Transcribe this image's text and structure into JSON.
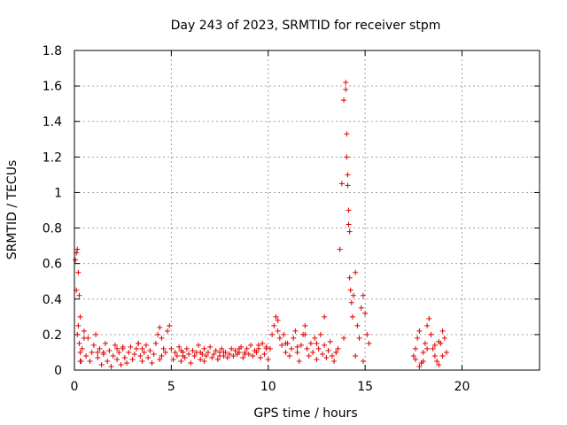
{
  "chart_data": {
    "type": "scatter",
    "title": "Day 243 of 2023, SRMTID for receiver stpm",
    "xlabel": "GPS time / hours",
    "ylabel": "SRMTID / TECUs",
    "xlim": [
      0,
      24
    ],
    "ylim": [
      0,
      1.8
    ],
    "xticks": [
      0,
      5,
      10,
      15,
      20
    ],
    "yticks": [
      0,
      0.2,
      0.4,
      0.6,
      0.8,
      1,
      1.2,
      1.4,
      1.6,
      1.8
    ],
    "xtick_labels": [
      "0",
      "5",
      "10",
      "15",
      "20"
    ],
    "ytick_labels": [
      "0",
      "0.2",
      "0.4",
      "0.6",
      "0.8",
      "1",
      "1.2",
      "1.4",
      "1.6",
      "1.8"
    ],
    "grid": true,
    "marker": "plus",
    "color": "#e00000",
    "series": [
      {
        "name": "SRMTID",
        "x": [
          0.05,
          0.1,
          0.15,
          0.2,
          0.25,
          0.3,
          0.1,
          0.2,
          0.15,
          0.25,
          0.3,
          0.35,
          0.4,
          0.5,
          0.6,
          0.7,
          0.8,
          0.9,
          1.0,
          1.1,
          1.2,
          1.3,
          1.4,
          1.5,
          1.6,
          1.7,
          1.8,
          1.9,
          2.0,
          2.1,
          2.2,
          2.3,
          2.4,
          2.5,
          2.6,
          2.7,
          2.8,
          2.9,
          3.0,
          3.1,
          3.2,
          3.3,
          3.4,
          3.5,
          3.6,
          3.7,
          3.8,
          3.9,
          4.0,
          4.1,
          4.2,
          4.3,
          4.4,
          4.5,
          4.6,
          4.7,
          4.8,
          4.9,
          5.0,
          5.1,
          5.2,
          5.3,
          5.4,
          5.5,
          5.6,
          5.7,
          5.8,
          5.9,
          6.0,
          6.1,
          6.2,
          6.3,
          6.4,
          6.5,
          6.6,
          6.7,
          6.8,
          6.9,
          7.0,
          7.1,
          7.2,
          7.3,
          7.4,
          7.5,
          7.6,
          7.7,
          7.8,
          7.9,
          8.0,
          8.1,
          8.2,
          8.3,
          8.4,
          8.5,
          8.6,
          8.7,
          8.8,
          8.9,
          9.0,
          9.1,
          9.2,
          9.3,
          9.4,
          9.5,
          9.6,
          9.7,
          9.8,
          9.9,
          10.0,
          10.1,
          10.2,
          10.3,
          10.4,
          10.5,
          10.6,
          10.7,
          10.8,
          10.9,
          11.0,
          11.1,
          11.2,
          11.3,
          11.4,
          11.5,
          11.6,
          11.7,
          11.8,
          11.9,
          12.0,
          12.1,
          12.2,
          12.3,
          12.4,
          12.5,
          12.6,
          12.7,
          12.8,
          12.9,
          13.0,
          13.1,
          13.2,
          13.3,
          13.4,
          13.5,
          13.6,
          13.7,
          13.8,
          13.9,
          14.0,
          14.0,
          14.05,
          14.05,
          14.1,
          14.1,
          14.15,
          14.15,
          14.2,
          14.2,
          14.25,
          14.3,
          14.35,
          14.4,
          14.5,
          14.6,
          14.7,
          14.8,
          14.9,
          15.0,
          15.1,
          15.2,
          0.5,
          1.5,
          2.5,
          3.5,
          4.5,
          5.5,
          6.5,
          7.5,
          8.5,
          9.5,
          10.5,
          11.5,
          12.5,
          13.5,
          14.5,
          0.3,
          1.2,
          2.2,
          3.3,
          4.4,
          5.6,
          6.7,
          7.7,
          8.8,
          9.9,
          10.9,
          11.9,
          12.9,
          13.9,
          14.9,
          17.5,
          17.6,
          17.7,
          17.8,
          17.9,
          18.0,
          18.1,
          18.2,
          18.3,
          18.4,
          18.5,
          18.6,
          18.7,
          18.8,
          18.9,
          19.0,
          19.1,
          19.2,
          17.6,
          17.8,
          18.0,
          18.2,
          18.4,
          18.6,
          18.8,
          19.0
        ],
        "y": [
          0.62,
          0.66,
          0.68,
          0.55,
          0.42,
          0.3,
          0.45,
          0.25,
          0.2,
          0.15,
          0.1,
          0.05,
          0.12,
          0.22,
          0.08,
          0.18,
          0.05,
          0.1,
          0.14,
          0.2,
          0.07,
          0.12,
          0.03,
          0.09,
          0.15,
          0.05,
          0.11,
          0.02,
          0.08,
          0.14,
          0.06,
          0.1,
          0.03,
          0.12,
          0.07,
          0.04,
          0.1,
          0.13,
          0.06,
          0.09,
          0.12,
          0.15,
          0.08,
          0.05,
          0.1,
          0.14,
          0.07,
          0.11,
          0.04,
          0.09,
          0.15,
          0.2,
          0.24,
          0.18,
          0.12,
          0.1,
          0.22,
          0.25,
          0.12,
          0.06,
          0.1,
          0.08,
          0.13,
          0.05,
          0.1,
          0.07,
          0.12,
          0.09,
          0.04,
          0.11,
          0.08,
          0.1,
          0.14,
          0.06,
          0.09,
          0.12,
          0.08,
          0.1,
          0.13,
          0.07,
          0.09,
          0.11,
          0.06,
          0.1,
          0.12,
          0.08,
          0.1,
          0.07,
          0.09,
          0.12,
          0.08,
          0.11,
          0.09,
          0.1,
          0.13,
          0.07,
          0.1,
          0.12,
          0.09,
          0.14,
          0.08,
          0.11,
          0.1,
          0.12,
          0.07,
          0.15,
          0.09,
          0.13,
          0.06,
          0.12,
          0.2,
          0.25,
          0.3,
          0.22,
          0.18,
          0.14,
          0.2,
          0.1,
          0.15,
          0.08,
          0.12,
          0.18,
          0.22,
          0.1,
          0.05,
          0.14,
          0.2,
          0.25,
          0.12,
          0.08,
          0.15,
          0.1,
          0.18,
          0.06,
          0.12,
          0.2,
          0.09,
          0.14,
          0.07,
          0.11,
          0.16,
          0.08,
          0.05,
          0.1,
          0.12,
          0.68,
          1.05,
          1.52,
          1.62,
          1.58,
          1.33,
          1.2,
          1.1,
          1.04,
          0.9,
          0.82,
          0.78,
          0.52,
          0.45,
          0.38,
          0.3,
          0.42,
          0.55,
          0.25,
          0.18,
          0.35,
          0.42,
          0.32,
          0.2,
          0.15,
          0.18,
          0.1,
          0.13,
          0.12,
          0.08,
          0.11,
          0.1,
          0.08,
          0.12,
          0.14,
          0.28,
          0.13,
          0.15,
          0.1,
          0.08,
          0.05,
          0.1,
          0.12,
          0.15,
          0.06,
          0.08,
          0.05,
          0.1,
          0.09,
          0.12,
          0.15,
          0.2,
          0.3,
          0.18,
          0.05,
          0.08,
          0.12,
          0.18,
          0.22,
          0.04,
          0.1,
          0.15,
          0.25,
          0.29,
          0.2,
          0.12,
          0.08,
          0.05,
          0.03,
          0.15,
          0.22,
          0.18,
          0.1,
          0.06,
          0.02,
          0.05,
          0.12,
          0.2,
          0.14,
          0.16,
          0.08
        ]
      }
    ]
  }
}
